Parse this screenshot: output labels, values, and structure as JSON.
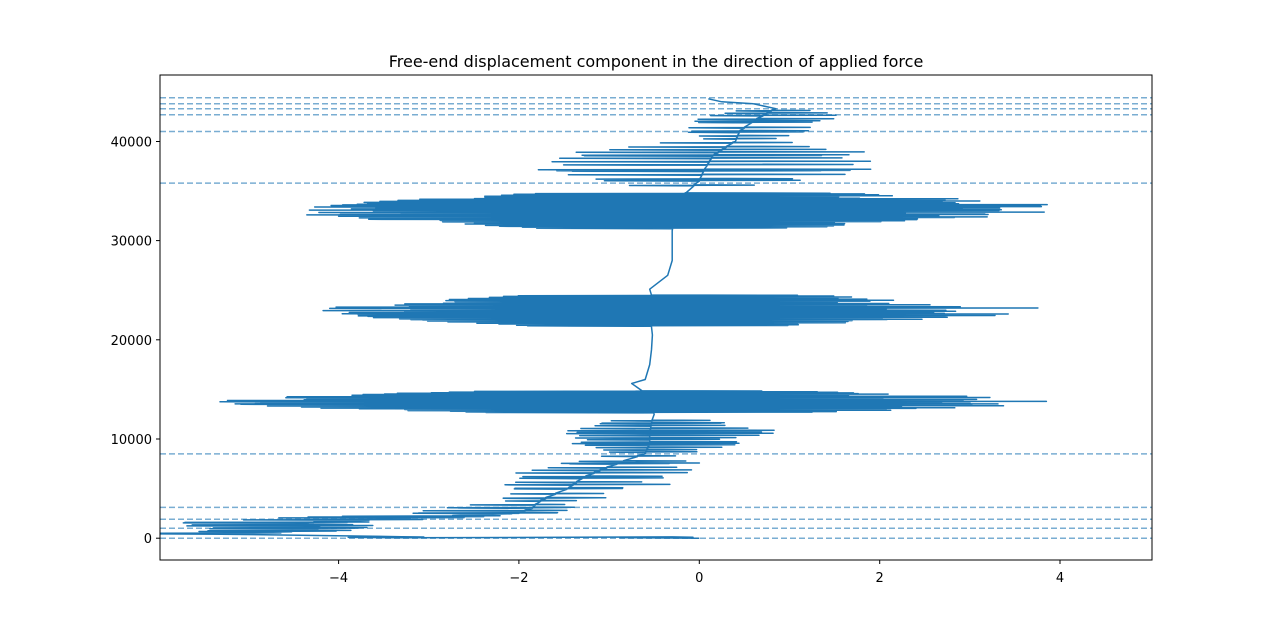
{
  "chart_data": {
    "type": "line",
    "title": "Free-end displacement component in the direction of applied force",
    "xlabel": "",
    "ylabel": "",
    "xlim": [
      -5.98,
      5.02
    ],
    "ylim": [
      -2200,
      46700
    ],
    "xticks": [
      -4,
      -2,
      0,
      2,
      4
    ],
    "xtick_labels": [
      "−4",
      "−2",
      "0",
      "2",
      "4"
    ],
    "yticks": [
      0,
      10000,
      20000,
      30000,
      40000
    ],
    "ytick_labels": [
      "0",
      "10000",
      "20000",
      "30000",
      "40000"
    ],
    "grid": false,
    "legend": "none",
    "series_color": "#1f77b4",
    "reference_lines": {
      "orientation": "horizontal",
      "style": "dashed",
      "y": [
        0,
        1000,
        1900,
        3100,
        8500,
        35800,
        41000,
        42700,
        43300,
        43800,
        44400
      ]
    },
    "series": [
      {
        "anchors": [
          [
            0,
            0
          ],
          [
            -0.3,
            20
          ],
          [
            -3.3,
            40
          ],
          [
            -5.3,
            400
          ],
          [
            -4.3,
            700
          ],
          [
            -4.2,
            1000
          ],
          [
            -4.3,
            1200
          ],
          [
            -4.4,
            1500
          ],
          [
            -3.2,
            2000
          ],
          [
            -2.9,
            2100
          ],
          [
            -2.0,
            2500
          ],
          [
            -1.85,
            3000
          ],
          [
            -1.8,
            3500
          ],
          [
            -1.7,
            4000
          ],
          [
            -1.45,
            5000
          ],
          [
            -1.3,
            6000
          ],
          [
            -1.1,
            6800
          ],
          [
            -0.9,
            7500
          ],
          [
            -0.6,
            8500
          ],
          [
            -0.55,
            9500
          ],
          [
            -0.55,
            10500
          ],
          [
            -0.53,
            11500
          ],
          [
            -0.52,
            12000
          ],
          [
            -0.5,
            12500
          ],
          [
            -0.55,
            13500
          ],
          [
            -0.6,
            14500
          ],
          [
            -0.75,
            15600
          ],
          [
            -0.6,
            16000
          ],
          [
            -0.55,
            17500
          ],
          [
            -0.53,
            19000
          ],
          [
            -0.52,
            20500
          ],
          [
            -0.53,
            21300
          ],
          [
            -0.52,
            22000
          ],
          [
            -0.52,
            23500
          ],
          [
            -0.53,
            24500
          ],
          [
            -0.55,
            25100
          ],
          [
            -0.35,
            26500
          ],
          [
            -0.3,
            28000
          ],
          [
            -0.3,
            29500
          ],
          [
            -0.3,
            31000
          ],
          [
            -0.28,
            32000
          ],
          [
            -0.25,
            33500
          ],
          [
            -0.15,
            34800
          ],
          [
            0.0,
            36000
          ],
          [
            0.05,
            37000
          ],
          [
            0.15,
            38500
          ],
          [
            0.4,
            40000
          ],
          [
            0.45,
            41000
          ],
          [
            0.6,
            42000
          ],
          [
            0.75,
            42800
          ],
          [
            0.85,
            43300
          ],
          [
            0.6,
            43800
          ],
          [
            0.25,
            44000
          ],
          [
            0.1,
            44300
          ]
        ],
        "bands": [
          {
            "y": [
              0,
              3500
            ],
            "count": 12,
            "amp_left": 1.6,
            "amp_right": 0.8
          },
          {
            "y": [
              3500,
              8500
            ],
            "count": 12,
            "amp_left": 0.9,
            "amp_right": 1.3
          },
          {
            "y": [
              8500,
              12000
            ],
            "count": 14,
            "amp_left": 1.0,
            "amp_right": 1.6
          },
          {
            "y": [
              12600,
              14800
            ],
            "count": 34,
            "amp_left": 4.9,
            "amp_right": 4.8
          },
          {
            "y": [
              21300,
              24500
            ],
            "count": 30,
            "amp_left": 3.7,
            "amp_right": 4.6
          },
          {
            "y": [
              31200,
              34800
            ],
            "count": 36,
            "amp_left": 4.3,
            "amp_right": 4.8
          },
          {
            "y": [
              35500,
              40000
            ],
            "count": 14,
            "amp_left": 2.0,
            "amp_right": 2.3
          },
          {
            "y": [
              40000,
              43300
            ],
            "count": 8,
            "amp_left": 0.8,
            "amp_right": 1.2
          }
        ]
      }
    ]
  }
}
